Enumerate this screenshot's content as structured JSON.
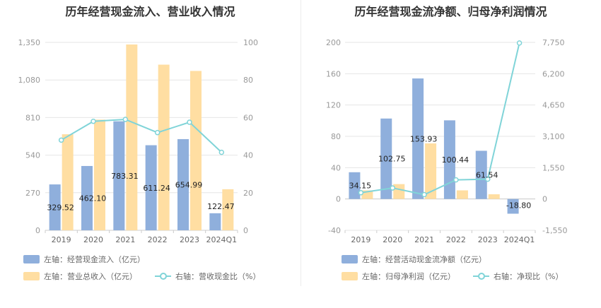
{
  "colors": {
    "bar1": "#8fafdc",
    "bar2": "#ffdea2",
    "line": "#80d4d8",
    "grid": "#e6e6e6"
  },
  "chart_data": [
    {
      "type": "bar",
      "title": "历年经营现金流入、营业收入情况",
      "categories": [
        "2019",
        "2020",
        "2021",
        "2022",
        "2023",
        "2024Q1"
      ],
      "series": [
        {
          "name": "左轴：经营现金流入（亿元）",
          "axis": "left",
          "type": "bar",
          "values": [
            329.52,
            462.1,
            783.31,
            611.24,
            654.99,
            122.47
          ],
          "labels": [
            "329.52",
            "462.10",
            "783.31",
            "611.24",
            "654.99",
            "122.47"
          ]
        },
        {
          "name": "左轴：营业总收入（亿元）",
          "axis": "left",
          "type": "bar",
          "values": [
            690,
            795,
            1335,
            1190,
            1145,
            295
          ]
        },
        {
          "name": "右轴：营收现金比（%）",
          "axis": "right",
          "type": "line",
          "values": [
            48,
            58,
            59,
            52,
            57.5,
            41.5
          ]
        }
      ],
      "left_axis": {
        "ticks": [
          "0",
          "270",
          "540",
          "810",
          "1,080",
          "1,350"
        ],
        "range": [
          0,
          1350
        ]
      },
      "right_axis": {
        "ticks": [
          "0",
          "20",
          "40",
          "60",
          "80",
          "100"
        ],
        "range": [
          0,
          100
        ]
      }
    },
    {
      "type": "bar",
      "title": "历年经营现金流净额、归母净利润情况",
      "categories": [
        "2019",
        "2020",
        "2021",
        "2022",
        "2023",
        "2024Q1"
      ],
      "series": [
        {
          "name": "左轴：经营活动现金流净额（亿元）",
          "axis": "left",
          "type": "bar",
          "values": [
            34.15,
            102.75,
            153.93,
            100.44,
            61.54,
            -18.8
          ],
          "labels": [
            "34.15",
            "102.75",
            "153.93",
            "100.44",
            "61.54",
            "-18.80"
          ]
        },
        {
          "name": "左轴：归母净利润（亿元）",
          "axis": "left",
          "type": "bar",
          "values": [
            11,
            19,
            71,
            11,
            6,
            0
          ]
        },
        {
          "name": "右轴：净现比（%）",
          "axis": "right",
          "type": "line",
          "values": [
            310,
            545,
            215,
            945,
            980,
            7720
          ]
        }
      ],
      "left_axis": {
        "ticks": [
          "-40",
          "0",
          "40",
          "80",
          "120",
          "160",
          "200"
        ],
        "range": [
          -40,
          200
        ]
      },
      "right_axis": {
        "ticks": [
          "-1,550",
          "0",
          "1,550",
          "3,100",
          "4,650",
          "6,200",
          "7,750"
        ],
        "range": [
          -1550,
          7750
        ]
      }
    }
  ]
}
